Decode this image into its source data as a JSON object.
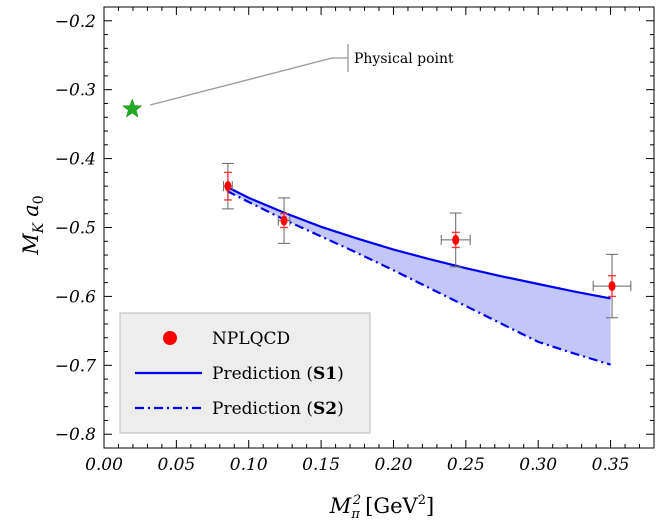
{
  "chart_data": {
    "type": "scatter",
    "xlabel": "M_π^2 [GeV^2]",
    "ylabel": "M_K a_0",
    "xlim": [
      0.0,
      0.38
    ],
    "ylim": [
      -0.82,
      -0.18
    ],
    "x_ticks": [
      0.0,
      0.05,
      0.1,
      0.15,
      0.2,
      0.25,
      0.3,
      0.35
    ],
    "x_tick_labels": [
      "0.00",
      "0.05",
      "0.10",
      "0.15",
      "0.20",
      "0.25",
      "0.30",
      "0.35"
    ],
    "y_ticks": [
      -0.8,
      -0.7,
      -0.6,
      -0.5,
      -0.4,
      -0.3,
      -0.2
    ],
    "y_tick_labels": [
      "−0.8",
      "−0.7",
      "−0.6",
      "−0.5",
      "−0.4",
      "−0.3",
      "−0.2"
    ],
    "grid": false,
    "legend_position": "bottom-left",
    "series": [
      {
        "name": "NPLQCD",
        "kind": "points",
        "color": "#ff0000",
        "points": [
          {
            "x": 0.0856,
            "y": -0.44,
            "xerr": 0.003,
            "yerr_stat": 0.02,
            "yerr_total": 0.033
          },
          {
            "x": 0.1244,
            "y": -0.49,
            "xerr": 0.004,
            "yerr_stat": 0.01,
            "yerr_total": 0.033
          },
          {
            "x": 0.243,
            "y": -0.518,
            "xerr": 0.01,
            "yerr_stat": 0.011,
            "yerr_total": 0.039
          },
          {
            "x": 0.351,
            "y": -0.585,
            "xerr": 0.013,
            "yerr_stat": 0.015,
            "yerr_total": 0.046
          }
        ]
      },
      {
        "name": "Prediction (S1)",
        "kind": "line",
        "style": "solid",
        "color": "#0000ee",
        "x": [
          0.085,
          0.1,
          0.125,
          0.15,
          0.175,
          0.2,
          0.225,
          0.25,
          0.275,
          0.3,
          0.325,
          0.35
        ],
        "y": [
          -0.441,
          -0.457,
          -0.479,
          -0.499,
          -0.516,
          -0.532,
          -0.546,
          -0.559,
          -0.571,
          -0.582,
          -0.593,
          -0.603
        ]
      },
      {
        "name": "Prediction (S2)",
        "kind": "line",
        "style": "dash-dot",
        "color": "#0000ee",
        "x": [
          0.085,
          0.1,
          0.125,
          0.15,
          0.175,
          0.2,
          0.225,
          0.25,
          0.275,
          0.3,
          0.325,
          0.35
        ],
        "y": [
          -0.447,
          -0.463,
          -0.489,
          -0.513,
          -0.537,
          -0.562,
          -0.588,
          -0.614,
          -0.64,
          -0.666,
          -0.683,
          -0.699
        ]
      }
    ],
    "band": {
      "between": [
        "Prediction (S1)",
        "Prediction (S2)"
      ],
      "color": "#b8bcf7"
    },
    "physical_point": {
      "x": 0.0195,
      "y": -0.328,
      "marker": "star",
      "color": "#22aa22"
    },
    "annotation": {
      "text": "Physical point",
      "anchor_x": 0.0195,
      "anchor_y": -0.328
    }
  },
  "legend": {
    "items": [
      {
        "label_main": "Prediction ",
        "label_bold": "",
        "full": "NPLQCD"
      },
      {
        "label_main": "Prediction ",
        "label_bold": "S1",
        "full": "Prediction (S1)"
      },
      {
        "label_main": "Prediction ",
        "label_bold": "S2",
        "full": "Prediction (S2)"
      }
    ]
  }
}
